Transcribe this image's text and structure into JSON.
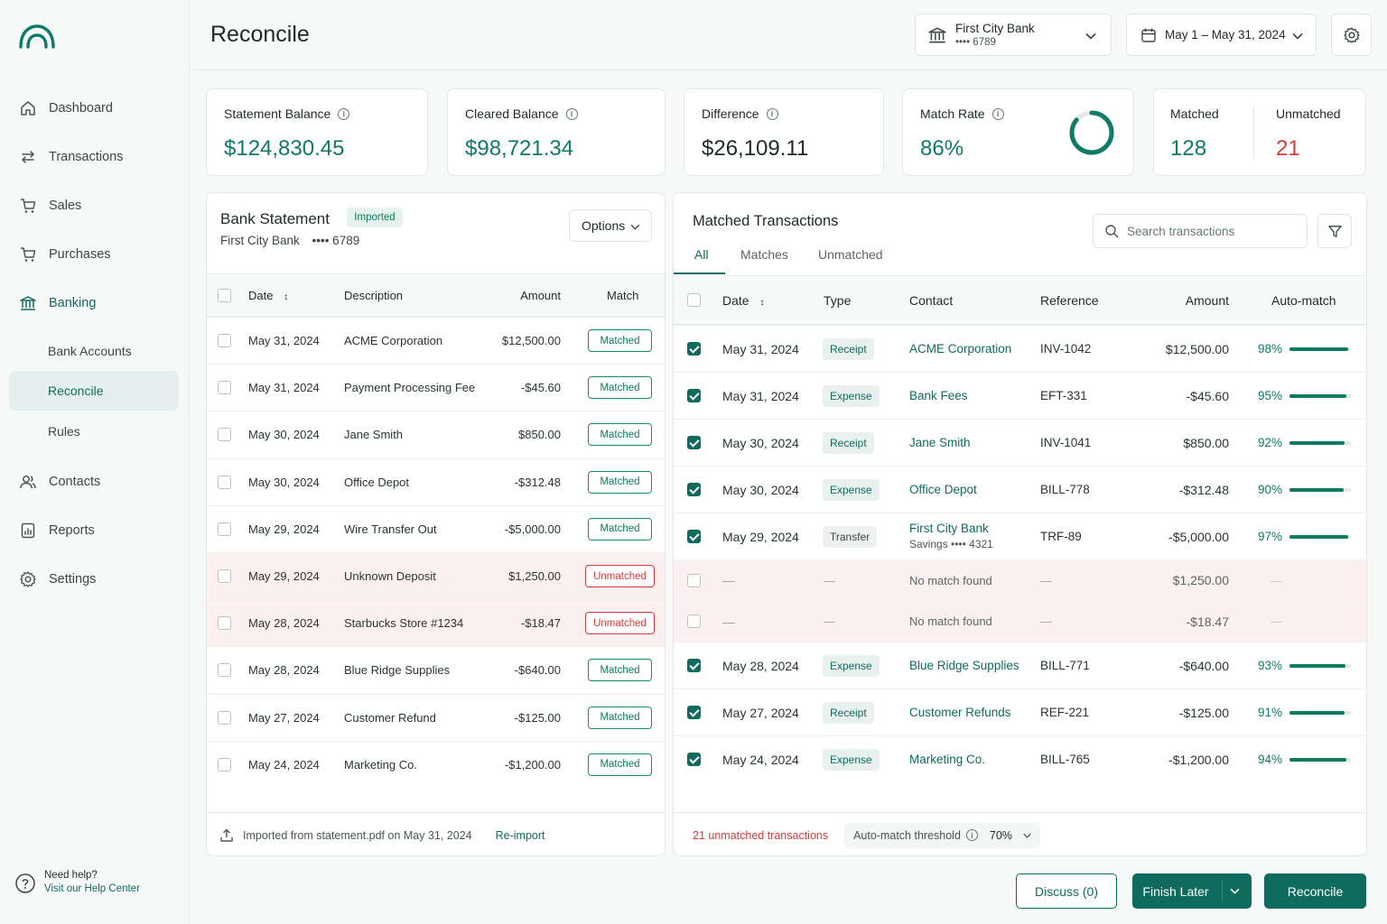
{
  "page": {
    "title": "Reconcile"
  },
  "account_select": {
    "name": "First City Bank",
    "mask": "•••• 6789"
  },
  "date_range": {
    "label": "May 1 – May 31, 2024"
  },
  "sidebar": {
    "items": [
      {
        "label": "Dashboard"
      },
      {
        "label": "Transactions"
      },
      {
        "label": "Sales"
      },
      {
        "label": "Purchases"
      },
      {
        "label": "Banking"
      },
      {
        "label": "Contacts"
      },
      {
        "label": "Reports"
      },
      {
        "label": "Settings"
      }
    ],
    "sub_items": [
      {
        "label": "Bank Accounts"
      },
      {
        "label": "Reconcile"
      },
      {
        "label": "Rules"
      }
    ],
    "help_title": "Need help?",
    "help_link": "Visit our Help Center"
  },
  "stats": {
    "statement_label": "Statement Balance",
    "statement_value": "$124,830.45",
    "cleared_label": "Cleared Balance",
    "cleared_value": "$98,721.34",
    "difference_label": "Difference",
    "difference_value": "$26,109.11",
    "match_rate_label": "Match Rate",
    "match_rate_value": "86%",
    "match_rate_fraction": 0.86,
    "matched_label": "Matched",
    "matched_value": "128",
    "unmatched_label": "Unmatched",
    "unmatched_value": "21"
  },
  "bank_statement": {
    "title": "Bank Statement",
    "badge": "Imported",
    "subtitle_bank": "First City Bank",
    "subtitle_mask": "•••• 6789",
    "options_label": "Options",
    "headers": {
      "date": "Date",
      "description": "Description",
      "amount": "Amount",
      "match": "Match"
    },
    "rows": [
      {
        "date": "May 31, 2024",
        "description": "ACME Corporation",
        "amount": "$12,500.00",
        "status": "Matched"
      },
      {
        "date": "May 31, 2024",
        "description": "Payment Processing Fee",
        "amount": "-$45.60",
        "status": "Matched"
      },
      {
        "date": "May 30, 2024",
        "description": "Jane Smith",
        "amount": "$850.00",
        "status": "Matched"
      },
      {
        "date": "May 30, 2024",
        "description": "Office Depot",
        "amount": "-$312.48",
        "status": "Matched"
      },
      {
        "date": "May 29, 2024",
        "description": "Wire Transfer Out",
        "amount": "-$5,000.00",
        "status": "Matched"
      },
      {
        "date": "May 29, 2024",
        "description": "Unknown Deposit",
        "amount": "$1,250.00",
        "status": "Unmatched"
      },
      {
        "date": "May 28, 2024",
        "description": "Starbucks Store #1234",
        "amount": "-$18.47",
        "status": "Unmatched"
      },
      {
        "date": "May 28, 2024",
        "description": "Blue Ridge Supplies",
        "amount": "-$640.00",
        "status": "Matched"
      },
      {
        "date": "May 27, 2024",
        "description": "Customer Refund",
        "amount": "-$125.00",
        "status": "Matched"
      },
      {
        "date": "May 24, 2024",
        "description": "Marketing Co.",
        "amount": "-$1,200.00",
        "status": "Matched"
      }
    ],
    "footer_text": "Imported from statement.pdf on May 31, 2024",
    "reimport_label": "Re-import"
  },
  "matched": {
    "title": "Matched Transactions",
    "tabs": [
      {
        "label": "All"
      },
      {
        "label": "Matches"
      },
      {
        "label": "Unmatched"
      }
    ],
    "search_placeholder": "Search transactions",
    "headers": {
      "date": "Date",
      "type": "Type",
      "contact": "Contact",
      "reference": "Reference",
      "amount": "Amount",
      "auto": "Auto-match"
    },
    "rows": [
      {
        "checked": true,
        "date": "May 31, 2024",
        "type": "Receipt",
        "contact": "ACME Corporation",
        "contact_sub": "",
        "reference": "INV-1042",
        "amount": "$12,500.00",
        "pct": "98%",
        "pct_value": 98
      },
      {
        "checked": true,
        "date": "May 31, 2024",
        "type": "Expense",
        "contact": "Bank Fees",
        "contact_sub": "",
        "reference": "EFT-331",
        "amount": "-$45.60",
        "pct": "95%",
        "pct_value": 95
      },
      {
        "checked": true,
        "date": "May 30, 2024",
        "type": "Receipt",
        "contact": "Jane Smith",
        "contact_sub": "",
        "reference": "INV-1041",
        "amount": "$850.00",
        "pct": "92%",
        "pct_value": 92
      },
      {
        "checked": true,
        "date": "May 30, 2024",
        "type": "Expense",
        "contact": "Office Depot",
        "contact_sub": "",
        "reference": "BILL-778",
        "amount": "-$312.48",
        "pct": "90%",
        "pct_value": 90
      },
      {
        "checked": true,
        "date": "May 29, 2024",
        "type": "Transfer",
        "contact": "First City Bank",
        "contact_sub": "Savings •••• 4321",
        "reference": "TRF-89",
        "amount": "-$5,000.00",
        "pct": "97%",
        "pct_value": 97
      },
      {
        "checked": false,
        "unmatched": true,
        "date": "—",
        "type": "—",
        "contact": "No match found",
        "contact_sub": "",
        "reference": "—",
        "amount": "$1,250.00",
        "pct": "—",
        "pct_value": 0
      },
      {
        "checked": false,
        "unmatched": true,
        "date": "—",
        "type": "—",
        "contact": "No match found",
        "contact_sub": "",
        "reference": "—",
        "amount": "-$18.47",
        "pct": "—",
        "pct_value": 0
      },
      {
        "checked": true,
        "date": "May 28, 2024",
        "type": "Expense",
        "contact": "Blue Ridge Supplies",
        "contact_sub": "",
        "reference": "BILL-771",
        "amount": "-$640.00",
        "pct": "93%",
        "pct_value": 93
      },
      {
        "checked": true,
        "date": "May 27, 2024",
        "type": "Receipt",
        "contact": "Customer Refunds",
        "contact_sub": "",
        "reference": "REF-221",
        "amount": "-$125.00",
        "pct": "91%",
        "pct_value": 91
      },
      {
        "checked": true,
        "date": "May 24, 2024",
        "type": "Expense",
        "contact": "Marketing Co.",
        "contact_sub": "",
        "reference": "BILL-765",
        "amount": "-$1,200.00",
        "pct": "94%",
        "pct_value": 94
      }
    ],
    "footer_unmatched": "21 unmatched transactions",
    "threshold_label": "Auto-match threshold",
    "threshold_value": "70%"
  },
  "actions": {
    "discuss": "Discuss (0)",
    "finish_later": "Finish Later",
    "reconcile": "Reconcile"
  },
  "colors": {
    "brand": "#0e6b5e",
    "accent_green": "#0e7a67",
    "danger": "#d63b3b"
  }
}
